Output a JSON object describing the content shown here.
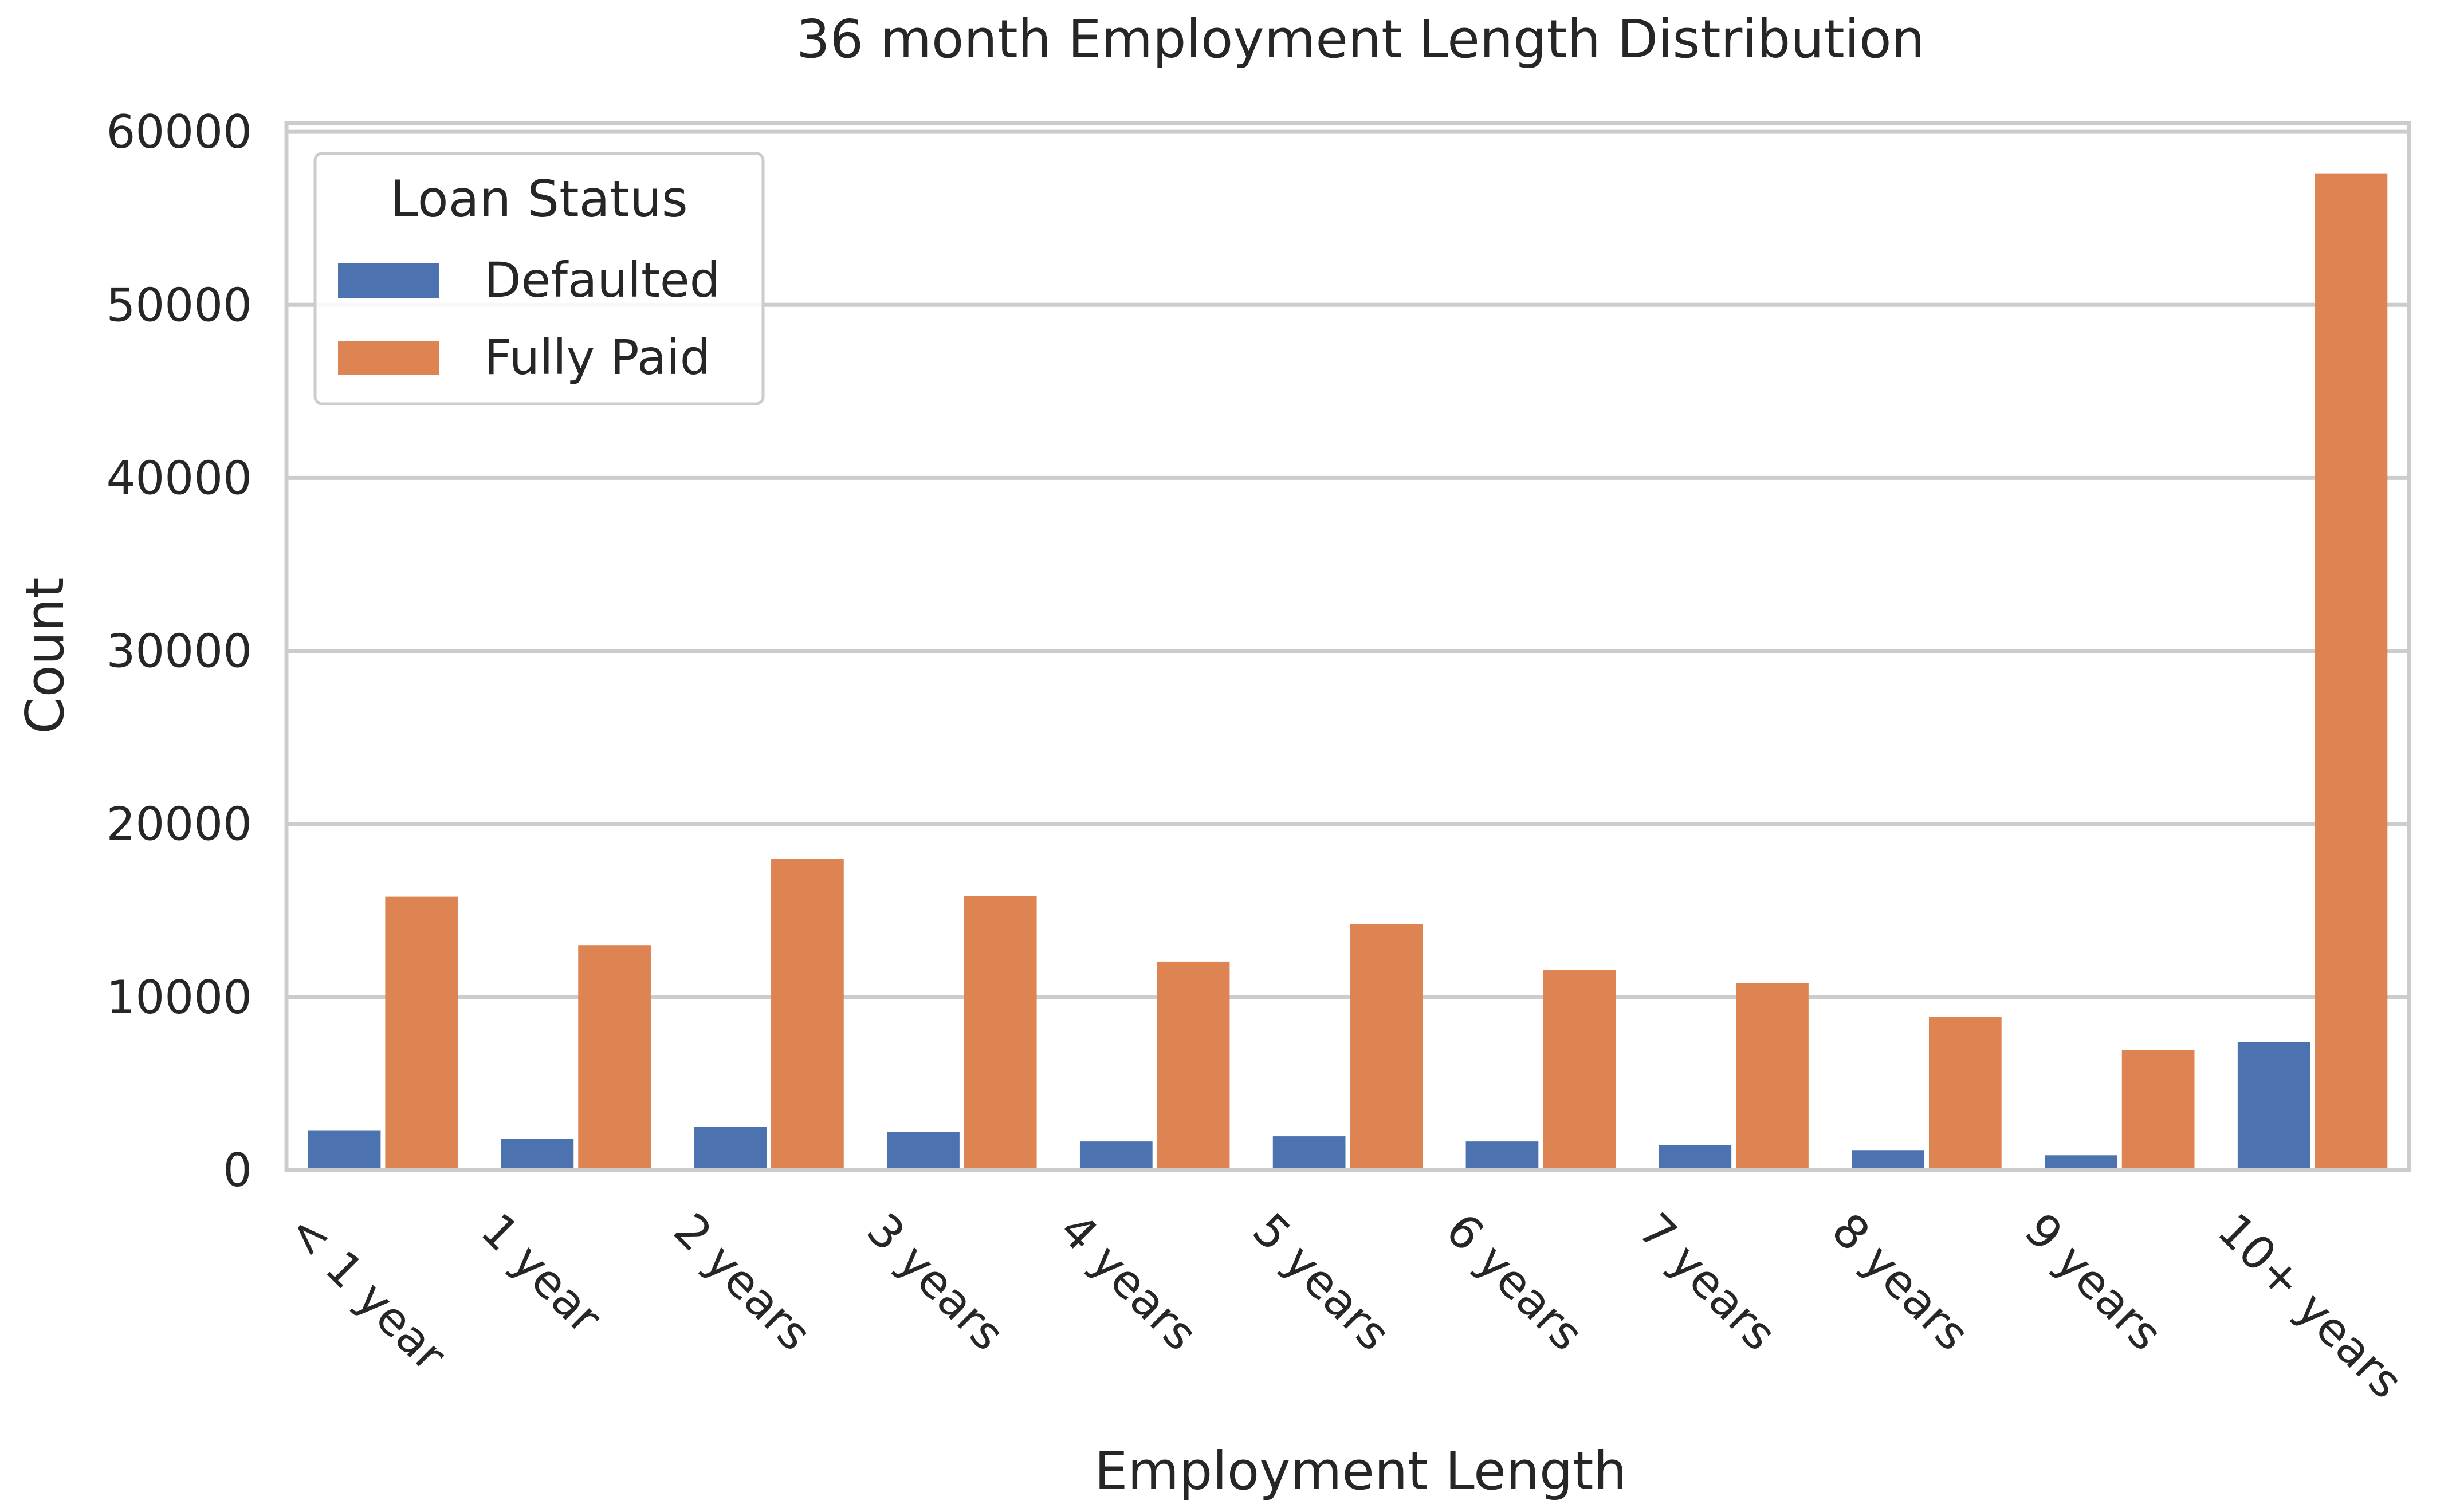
{
  "chart_data": {
    "type": "bar",
    "title": "36 month Employment Length Distribution",
    "xlabel": "Employment Length",
    "ylabel": "Count",
    "categories": [
      "< 1 year",
      "1 year",
      "2 years",
      "3 years",
      "4 years",
      "5 years",
      "6 years",
      "7 years",
      "8 years",
      "9 years",
      "10+ years"
    ],
    "series": [
      {
        "name": "Defaulted",
        "color": "#4c72b0",
        "values": [
          2300,
          1800,
          2500,
          2200,
          1650,
          1950,
          1650,
          1450,
          1150,
          850,
          7400
        ]
      },
      {
        "name": "Fully Paid",
        "color": "#dd8452",
        "values": [
          15800,
          13000,
          18000,
          15850,
          12050,
          14200,
          11550,
          10800,
          8850,
          6950,
          57600
        ]
      }
    ],
    "ylim": [
      0,
      60500
    ],
    "yticks": [
      0,
      10000,
      20000,
      30000,
      40000,
      50000,
      60000
    ],
    "grid": true,
    "legend": {
      "title": "Loan Status",
      "position": "top-left"
    }
  }
}
